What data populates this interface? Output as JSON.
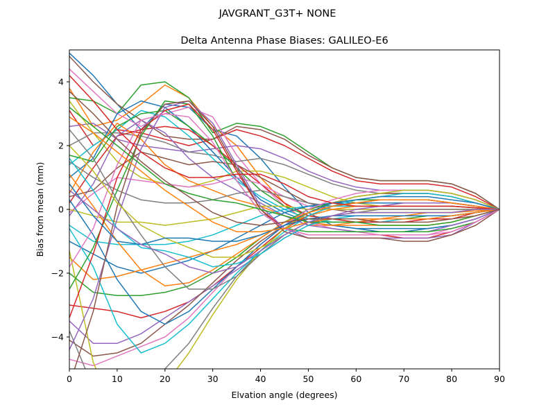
{
  "figure": {
    "suptitle": "JAVGRANT_G3T+   NONE"
  },
  "chart_data": {
    "type": "line",
    "title": "Delta Antenna Phase Biases: GALILEO-E6",
    "xlabel": "Elvation angle (degrees)",
    "ylabel": "Bias from mean (mm)",
    "xlim": [
      0,
      90
    ],
    "ylim": [
      -5,
      5
    ],
    "xticks": [
      0,
      10,
      20,
      30,
      40,
      50,
      60,
      70,
      80,
      90
    ],
    "yticks": [
      -4,
      -2,
      0,
      2,
      4
    ],
    "grid": false,
    "legend": "none",
    "x": [
      0,
      5,
      10,
      15,
      20,
      25,
      30,
      35,
      40,
      45,
      50,
      55,
      60,
      65,
      70,
      75,
      80,
      85,
      90
    ],
    "colors": [
      "#1f77b4",
      "#ff7f0e",
      "#2ca02c",
      "#d62728",
      "#9467bd",
      "#8c564b",
      "#e377c2",
      "#7f7f7f",
      "#bcbd22",
      "#17becf"
    ],
    "series": [
      {
        "values": [
          4.9,
          4.2,
          3.3,
          2.5,
          3.3,
          3.2,
          2.5,
          2.3,
          1.6,
          0.7,
          -0.1,
          -0.5,
          -0.6,
          -0.7,
          -0.7,
          -0.6,
          -0.5,
          -0.3,
          0.0
        ]
      },
      {
        "values": [
          3.8,
          2.6,
          2.8,
          3.3,
          3.9,
          3.5,
          2.6,
          2.0,
          1.0,
          0.2,
          -0.5,
          -0.5,
          -0.4,
          -0.3,
          -0.2,
          -0.1,
          -0.1,
          -0.05,
          0.0
        ]
      },
      {
        "values": [
          3.5,
          3.4,
          3.0,
          3.9,
          4.0,
          3.5,
          2.4,
          2.7,
          2.6,
          2.3,
          1.8,
          1.3,
          1.0,
          0.9,
          0.9,
          0.9,
          0.8,
          0.5,
          0.0
        ]
      },
      {
        "values": [
          3.1,
          2.0,
          2.5,
          2.4,
          2.2,
          2.0,
          2.2,
          2.5,
          2.3,
          2.0,
          1.6,
          1.2,
          0.9,
          0.8,
          0.8,
          0.8,
          0.7,
          0.4,
          0.0
        ]
      },
      {
        "values": [
          2.6,
          2.7,
          2.2,
          2.0,
          1.9,
          1.8,
          1.9,
          2.0,
          1.9,
          1.6,
          1.2,
          0.9,
          0.7,
          0.6,
          0.6,
          0.6,
          0.5,
          0.3,
          0.0
        ]
      },
      {
        "values": [
          4.8,
          4.0,
          3.3,
          2.8,
          2.3,
          2.2,
          2.2,
          2.6,
          2.5,
          2.2,
          1.7,
          1.3,
          1.0,
          0.9,
          0.9,
          0.9,
          0.8,
          0.5,
          0.0
        ]
      },
      {
        "values": [
          4.4,
          3.7,
          3.0,
          2.6,
          3.0,
          3.2,
          2.9,
          1.7,
          0.8,
          0.1,
          -0.4,
          -0.6,
          -0.7,
          -0.8,
          -0.8,
          -0.8,
          -0.6,
          -0.4,
          0.0
        ]
      },
      {
        "values": [
          2.0,
          2.4,
          2.4,
          2.3,
          2.1,
          1.8,
          1.7,
          1.5,
          1.6,
          1.4,
          1.1,
          0.8,
          0.6,
          0.5,
          0.5,
          0.5,
          0.4,
          0.2,
          0.0
        ]
      },
      {
        "values": [
          3.4,
          2.4,
          1.5,
          1.0,
          0.8,
          0.7,
          0.9,
          1.2,
          1.2,
          1.0,
          0.7,
          0.4,
          0.2,
          0.1,
          0.1,
          0.1,
          0.1,
          0.05,
          0.0
        ]
      },
      {
        "values": [
          1.4,
          2.0,
          2.5,
          3.1,
          2.9,
          2.3,
          1.6,
          0.9,
          0.4,
          0.0,
          -0.3,
          -0.4,
          -0.4,
          -0.4,
          -0.3,
          -0.3,
          -0.2,
          -0.1,
          0.0
        ]
      },
      {
        "values": [
          1.0,
          1.6,
          3.0,
          3.4,
          3.2,
          2.6,
          1.8,
          1.0,
          0.3,
          -0.1,
          -0.4,
          -0.5,
          -0.6,
          -0.6,
          -0.6,
          -0.6,
          -0.5,
          -0.3,
          0.0
        ]
      },
      {
        "values": [
          0.5,
          1.8,
          2.7,
          2.2,
          1.4,
          0.9,
          0.6,
          0.3,
          0.1,
          -0.2,
          -0.4,
          -0.5,
          -0.5,
          -0.5,
          -0.5,
          -0.5,
          -0.4,
          -0.2,
          0.0
        ]
      },
      {
        "values": [
          1.7,
          1.5,
          2.6,
          3.0,
          3.1,
          2.6,
          2.0,
          1.3,
          0.6,
          0.1,
          -0.2,
          -0.3,
          -0.3,
          -0.3,
          -0.3,
          -0.2,
          -0.2,
          -0.1,
          0.0
        ]
      },
      {
        "values": [
          0.2,
          1.3,
          2.3,
          2.5,
          2.6,
          2.5,
          2.0,
          1.4,
          0.8,
          0.2,
          -0.2,
          -0.3,
          -0.4,
          -0.4,
          -0.4,
          -0.3,
          -0.3,
          -0.1,
          0.0
        ]
      },
      {
        "values": [
          -0.2,
          0.8,
          2.3,
          2.8,
          2.4,
          1.6,
          1.0,
          0.6,
          0.2,
          -0.2,
          -0.5,
          -0.6,
          -0.7,
          -0.7,
          -0.7,
          -0.7,
          -0.5,
          -0.3,
          0.0
        ]
      },
      {
        "values": [
          0.4,
          0.6,
          1.3,
          1.8,
          1.6,
          1.4,
          1.5,
          1.4,
          1.0,
          0.6,
          0.2,
          0.0,
          -0.1,
          -0.1,
          -0.1,
          -0.1,
          -0.1,
          0.0,
          0.0
        ]
      },
      {
        "values": [
          -0.1,
          0.5,
          1.0,
          0.9,
          0.8,
          0.7,
          0.8,
          1.0,
          0.8,
          0.4,
          0.1,
          0.0,
          0.0,
          0.0,
          0.0,
          0.0,
          0.0,
          0.0,
          0.0
        ]
      },
      {
        "values": [
          1.5,
          1.0,
          0.6,
          0.3,
          0.2,
          0.2,
          0.3,
          0.5,
          0.6,
          0.4,
          0.2,
          0.1,
          0.1,
          0.1,
          0.1,
          0.1,
          0.1,
          0.05,
          0.0
        ]
      },
      {
        "values": [
          0.0,
          -0.2,
          -0.4,
          -0.4,
          -0.5,
          -0.4,
          -0.3,
          -0.1,
          0.1,
          0.1,
          0.0,
          0.0,
          0.0,
          0.0,
          0.0,
          0.0,
          0.0,
          0.0,
          0.0
        ]
      },
      {
        "values": [
          -0.5,
          -1.0,
          -1.1,
          -1.1,
          -1.1,
          -1.0,
          -0.8,
          -0.5,
          -0.2,
          0.0,
          0.1,
          0.1,
          0.1,
          0.1,
          0.1,
          0.1,
          0.1,
          0.05,
          0.0
        ]
      },
      {
        "values": [
          -1.0,
          -1.4,
          -1.8,
          -2.0,
          -1.8,
          -1.6,
          -1.3,
          -0.9,
          -0.5,
          -0.1,
          0.1,
          0.2,
          0.2,
          0.2,
          0.2,
          0.2,
          0.2,
          0.1,
          0.0
        ]
      },
      {
        "values": [
          -1.5,
          -2.2,
          -2.1,
          -1.9,
          -1.7,
          -1.5,
          -1.3,
          -1.1,
          -0.8,
          -0.5,
          -0.2,
          0.0,
          0.1,
          0.1,
          0.1,
          0.1,
          0.1,
          0.05,
          0.0
        ]
      },
      {
        "values": [
          -2.0,
          -2.6,
          -2.7,
          -2.7,
          -2.6,
          -2.4,
          -2.0,
          -1.5,
          -0.9,
          -0.4,
          0.0,
          0.2,
          0.3,
          0.3,
          0.3,
          0.3,
          0.2,
          0.1,
          0.0
        ]
      },
      {
        "values": [
          -3.0,
          -3.1,
          -3.2,
          -3.4,
          -3.2,
          -2.9,
          -2.4,
          -1.8,
          -1.2,
          -0.6,
          -0.2,
          0.1,
          0.2,
          0.3,
          0.3,
          0.3,
          0.2,
          0.1,
          0.0
        ]
      },
      {
        "values": [
          -3.5,
          -4.2,
          -4.2,
          -3.9,
          -3.4,
          -2.9,
          -2.4,
          -1.9,
          -1.4,
          -0.9,
          -0.5,
          -0.2,
          0.0,
          0.1,
          0.2,
          0.2,
          0.2,
          0.1,
          0.0
        ]
      },
      {
        "values": [
          -4.1,
          -4.6,
          -4.5,
          -4.2,
          -3.6,
          -3.0,
          -2.3,
          -1.6,
          -1.0,
          -0.5,
          -0.1,
          0.2,
          0.4,
          0.5,
          0.5,
          0.5,
          0.4,
          0.2,
          0.0
        ]
      },
      {
        "values": [
          -4.7,
          -4.9,
          -4.6,
          -4.3,
          -4.0,
          -3.4,
          -2.6,
          -1.8,
          -1.1,
          -0.5,
          0.0,
          0.3,
          0.5,
          0.6,
          0.6,
          0.6,
          0.5,
          0.3,
          0.0
        ]
      },
      {
        "values": [
          -3.8,
          -5.6,
          -6.0,
          -5.6,
          -5.0,
          -4.2,
          -3.1,
          -2.1,
          -1.3,
          -0.6,
          -0.1,
          0.2,
          0.4,
          0.5,
          0.6,
          0.6,
          0.5,
          0.3,
          0.0
        ]
      },
      {
        "values": [
          -1.3,
          -4.8,
          -6.5,
          -6.2,
          -5.5,
          -4.5,
          -3.3,
          -2.2,
          -1.3,
          -0.6,
          -0.1,
          0.2,
          0.4,
          0.5,
          0.6,
          0.6,
          0.5,
          0.3,
          0.0
        ]
      },
      {
        "values": [
          -0.6,
          -1.8,
          -3.6,
          -4.5,
          -4.2,
          -3.6,
          -2.8,
          -2.0,
          -1.3,
          -0.7,
          -0.2,
          0.1,
          0.3,
          0.4,
          0.5,
          0.5,
          0.4,
          0.2,
          0.0
        ]
      },
      {
        "values": [
          0.3,
          -0.8,
          -2.2,
          -3.2,
          -3.6,
          -3.2,
          -2.5,
          -1.8,
          -1.1,
          -0.5,
          -0.1,
          0.2,
          0.3,
          0.4,
          0.4,
          0.4,
          0.3,
          0.2,
          0.0
        ]
      },
      {
        "values": [
          1.1,
          0.1,
          -1.0,
          -1.9,
          -2.4,
          -2.3,
          -1.9,
          -1.4,
          -0.9,
          -0.4,
          -0.1,
          0.1,
          0.2,
          0.3,
          0.3,
          0.3,
          0.2,
          0.1,
          0.0
        ]
      },
      {
        "values": [
          -2.5,
          -1.2,
          0.6,
          2.3,
          3.4,
          3.3,
          2.3,
          0.9,
          -0.1,
          -0.6,
          -0.7,
          -0.7,
          -0.7,
          -0.7,
          -0.7,
          -0.7,
          -0.6,
          -0.4,
          0.0
        ]
      },
      {
        "values": [
          -3.4,
          -1.4,
          1.0,
          2.5,
          3.1,
          3.3,
          2.5,
          1.2,
          0.0,
          -0.6,
          -0.8,
          -0.8,
          -0.8,
          -0.8,
          -0.9,
          -0.9,
          -0.7,
          -0.4,
          0.0
        ]
      },
      {
        "values": [
          -4.4,
          -2.8,
          -0.3,
          1.9,
          3.2,
          3.4,
          2.7,
          1.4,
          0.1,
          -0.6,
          -0.9,
          -0.9,
          -0.9,
          -0.9,
          -0.9,
          -0.9,
          -0.8,
          -0.4,
          0.0
        ]
      },
      {
        "values": [
          -5.5,
          -3.2,
          0.1,
          2.4,
          3.3,
          3.4,
          2.6,
          1.3,
          0.0,
          -0.7,
          -0.9,
          -0.9,
          -0.9,
          -0.9,
          -1.0,
          -1.0,
          -0.8,
          -0.5,
          0.0
        ]
      },
      {
        "values": [
          -1.8,
          -0.6,
          1.4,
          2.8,
          3.0,
          2.9,
          2.1,
          0.9,
          -0.1,
          -0.6,
          -0.8,
          -0.8,
          -0.8,
          -0.8,
          -0.8,
          -0.8,
          -0.7,
          -0.4,
          0.0
        ]
      },
      {
        "values": [
          2.5,
          1.6,
          0.3,
          -0.8,
          -1.8,
          -2.5,
          -2.5,
          -2.1,
          -1.4,
          -0.8,
          -0.4,
          -0.2,
          -0.1,
          0.0,
          0.0,
          0.0,
          0.0,
          0.0,
          0.0
        ]
      },
      {
        "values": [
          2.0,
          1.2,
          0.2,
          -0.5,
          -0.9,
          -1.2,
          -1.5,
          -1.5,
          -1.2,
          -0.8,
          -0.4,
          -0.2,
          -0.1,
          -0.1,
          -0.1,
          -0.1,
          -0.1,
          0.0,
          0.0
        ]
      },
      {
        "values": [
          1.6,
          0.6,
          -0.6,
          -1.2,
          -1.3,
          -1.5,
          -1.8,
          -1.7,
          -1.4,
          -0.9,
          -0.5,
          -0.3,
          -0.2,
          -0.2,
          -0.2,
          -0.2,
          -0.2,
          -0.1,
          0.0
        ]
      },
      {
        "values": [
          0.8,
          -0.2,
          -1.0,
          -1.1,
          -0.9,
          -0.9,
          -1.0,
          -1.0,
          -0.8,
          -0.5,
          -0.3,
          -0.2,
          -0.2,
          -0.2,
          -0.2,
          -0.2,
          -0.2,
          -0.1,
          0.0
        ]
      },
      {
        "values": [
          2.9,
          2.4,
          1.8,
          1.2,
          0.6,
          0.1,
          -0.4,
          -0.7,
          -0.7,
          -0.6,
          -0.4,
          -0.3,
          -0.3,
          -0.3,
          -0.3,
          -0.3,
          -0.2,
          -0.1,
          0.0
        ]
      },
      {
        "values": [
          3.2,
          2.6,
          2.0,
          1.4,
          0.8,
          0.5,
          0.3,
          0.2,
          0.0,
          -0.2,
          -0.4,
          -0.4,
          -0.4,
          -0.5,
          -0.5,
          -0.5,
          -0.4,
          -0.2,
          0.0
        ]
      },
      {
        "values": [
          4.2,
          3.4,
          2.5,
          1.8,
          1.3,
          1.0,
          1.0,
          1.1,
          1.1,
          0.8,
          0.4,
          0.2,
          0.1,
          0.1,
          0.1,
          0.1,
          0.1,
          0.05,
          0.0
        ]
      },
      {
        "values": [
          0.6,
          0.0,
          -0.6,
          -1.1,
          -1.4,
          -1.8,
          -2.0,
          -1.8,
          -1.3,
          -0.8,
          -0.4,
          -0.2,
          -0.1,
          -0.1,
          -0.1,
          -0.1,
          -0.1,
          0.0,
          0.0
        ]
      },
      {
        "values": [
          3.7,
          3.0,
          2.2,
          1.5,
          0.9,
          0.4,
          -0.1,
          -0.4,
          -0.5,
          -0.4,
          -0.3,
          -0.3,
          -0.3,
          -0.4,
          -0.4,
          -0.4,
          -0.3,
          -0.2,
          0.0
        ]
      }
    ]
  }
}
